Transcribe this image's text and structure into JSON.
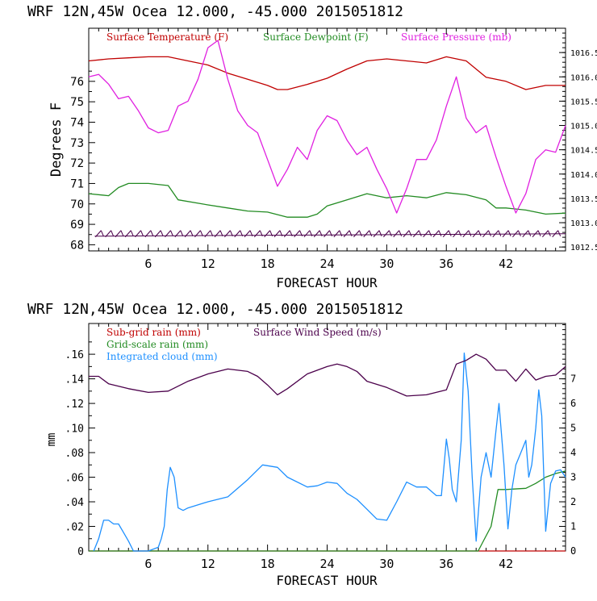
{
  "chart_data": [
    {
      "type": "line",
      "title": "WRF   12N,45W Ocea  12.000, -45.000  2015051812",
      "xlabel": "FORECAST HOUR",
      "ylabel": "Degrees F",
      "xlim": [
        0,
        48
      ],
      "xticks": [
        6,
        12,
        18,
        24,
        30,
        36,
        42
      ],
      "ylim_left": [
        67.7,
        78.6
      ],
      "yticks_left": [
        68,
        69,
        70,
        71,
        72,
        73,
        74,
        75,
        76
      ],
      "ylim_right": [
        1012.42,
        1017.0
      ],
      "yticks_right_labels": [
        "1012.5",
        "1013.0",
        "1013.5",
        "1014.0",
        "1014.5",
        "1015.0",
        "1015.5",
        "1016.0",
        "1016.5"
      ],
      "yticks_right": [
        1012.5,
        1013.0,
        1013.5,
        1014.0,
        1014.5,
        1015.0,
        1015.5,
        1016.0,
        1016.5
      ],
      "series": [
        {
          "name": "Surface Temperature (F)",
          "color": "#c00000",
          "axis": "left",
          "x": [
            0,
            2,
            4,
            6,
            8,
            10,
            12,
            14,
            16,
            18,
            19,
            20,
            22,
            24,
            26,
            28,
            30,
            32,
            34,
            36,
            38,
            40,
            42,
            44,
            46,
            48
          ],
          "y": [
            77.0,
            77.1,
            77.15,
            77.2,
            77.2,
            77.0,
            76.8,
            76.4,
            76.1,
            75.8,
            75.6,
            75.6,
            75.85,
            76.15,
            76.6,
            77.0,
            77.1,
            77.0,
            76.9,
            77.2,
            77.0,
            76.2,
            76.0,
            75.6,
            75.8,
            75.8
          ]
        },
        {
          "name": "Surface Dewpoint (F)",
          "color": "#228b22",
          "axis": "left",
          "x": [
            0,
            2,
            3,
            4,
            6,
            8,
            9,
            12,
            14,
            16,
            18,
            20,
            22,
            23,
            24,
            26,
            28,
            30,
            32,
            34,
            36,
            38,
            40,
            41,
            42,
            44,
            46,
            48
          ],
          "y": [
            70.5,
            70.4,
            70.8,
            71.0,
            71.0,
            70.9,
            70.2,
            69.95,
            69.8,
            69.65,
            69.6,
            69.35,
            69.35,
            69.5,
            69.9,
            70.2,
            70.5,
            70.3,
            70.4,
            70.3,
            70.55,
            70.45,
            70.2,
            69.8,
            69.8,
            69.7,
            69.5,
            69.55
          ]
        },
        {
          "name": "Surface Pressure (mb)",
          "color": "#e020e0",
          "axis": "right",
          "x": [
            0,
            1,
            2,
            3,
            4,
            5,
            6,
            7,
            8,
            9,
            10,
            11,
            12,
            13,
            14,
            15,
            16,
            17,
            18,
            19,
            20,
            21,
            22,
            23,
            24,
            25,
            26,
            27,
            28,
            29,
            30,
            31,
            32,
            33,
            34,
            35,
            36,
            37,
            38,
            39,
            40,
            41,
            42,
            43,
            44,
            45,
            46,
            47,
            48
          ],
          "y": [
            1016.0,
            1016.05,
            1015.85,
            1015.55,
            1015.6,
            1015.3,
            1014.95,
            1014.85,
            1014.9,
            1015.4,
            1015.5,
            1015.95,
            1016.6,
            1016.75,
            1015.95,
            1015.3,
            1015.0,
            1014.85,
            1014.3,
            1013.75,
            1014.1,
            1014.55,
            1014.3,
            1014.9,
            1015.2,
            1015.1,
            1014.7,
            1014.4,
            1014.55,
            1014.1,
            1013.7,
            1013.2,
            1013.7,
            1014.3,
            1014.3,
            1014.7,
            1015.4,
            1016.0,
            1015.15,
            1014.85,
            1015.0,
            1014.35,
            1013.75,
            1013.2,
            1013.6,
            1014.3,
            1014.5,
            1014.45,
            1015.0
          ]
        }
      ],
      "wind_barbs_y": 68.5
    },
    {
      "type": "line",
      "title": "WRF   12N,45W Ocea  12.000, -45.000  2015051812",
      "xlabel": "FORECAST HOUR",
      "ylabel": "mm",
      "xlim": [
        0,
        48
      ],
      "xticks": [
        6,
        12,
        18,
        24,
        30,
        36,
        42
      ],
      "ylim_left": [
        0,
        0.185
      ],
      "yticks_left": [
        0,
        0.02,
        0.04,
        0.06,
        0.08,
        0.1,
        0.12,
        0.14,
        0.16
      ],
      "yticks_left_labels": [
        "0",
        ".02",
        ".04",
        ".06",
        ".08",
        ".10",
        ".12",
        ".14",
        ".16"
      ],
      "ylim_right": [
        0,
        9.25
      ],
      "yticks_right": [
        0,
        1,
        2,
        3,
        4,
        5,
        6,
        7
      ],
      "series": [
        {
          "name": "Sub-grid rain (mm)",
          "color": "#c00000",
          "axis": "left",
          "x": [
            0,
            48
          ],
          "y": [
            0,
            0
          ]
        },
        {
          "name": "Grid-scale rain (mm)",
          "color": "#228b22",
          "axis": "left",
          "x": [
            0,
            39.2,
            40.5,
            41.2,
            42,
            44,
            45,
            46,
            47,
            48
          ],
          "y": [
            0,
            0,
            0.02,
            0.05,
            0.05,
            0.051,
            0.055,
            0.06,
            0.063,
            0.065
          ]
        },
        {
          "name": "Integrated cloud (mm)",
          "color": "#1e90ff",
          "axis": "left",
          "x": [
            0.5,
            1.0,
            1.5,
            2.0,
            2.5,
            3.0,
            3.5,
            4.0,
            4.5,
            5.0,
            6.0,
            7.0,
            7.3,
            7.6,
            7.9,
            8.2,
            8.6,
            9.0,
            9.5,
            10,
            12,
            14,
            16,
            17.5,
            19,
            20,
            22,
            23,
            24,
            25,
            26,
            27,
            28,
            29,
            30,
            31,
            32,
            33,
            34,
            35,
            35.5,
            36.0,
            36.3,
            36.6,
            37.0,
            37.5,
            37.8,
            38.2,
            38.6,
            39.0,
            39.5,
            40.0,
            40.5,
            41.0,
            41.3,
            41.8,
            42.2,
            42.6,
            43.0,
            43.5,
            44.0,
            44.3,
            44.6,
            45.0,
            45.3,
            45.6,
            46.0,
            46.5,
            47.0,
            47.5,
            48
          ],
          "y": [
            0,
            0.01,
            0.025,
            0.025,
            0.022,
            0.022,
            0.015,
            0.008,
            0.0,
            0.0,
            0.0,
            0.003,
            0.01,
            0.02,
            0.05,
            0.068,
            0.06,
            0.035,
            0.033,
            0.035,
            0.04,
            0.044,
            0.058,
            0.07,
            0.068,
            0.06,
            0.052,
            0.053,
            0.056,
            0.055,
            0.047,
            0.042,
            0.034,
            0.026,
            0.025,
            0.04,
            0.056,
            0.052,
            0.052,
            0.045,
            0.045,
            0.091,
            0.075,
            0.05,
            0.04,
            0.09,
            0.161,
            0.13,
            0.06,
            0.008,
            0.06,
            0.08,
            0.06,
            0.098,
            0.12,
            0.07,
            0.018,
            0.05,
            0.07,
            0.08,
            0.09,
            0.06,
            0.07,
            0.1,
            0.131,
            0.11,
            0.016,
            0.055,
            0.065,
            0.066,
            0.06
          ]
        },
        {
          "name": "Surface Wind Speed (m/s)",
          "color": "#4b004b",
          "axis": "right",
          "x": [
            0,
            1,
            2,
            4,
            6,
            8,
            10,
            12,
            14,
            16,
            17,
            18,
            19,
            20,
            22,
            24,
            25,
            26,
            27,
            28,
            30,
            32,
            34,
            36,
            37,
            38,
            39,
            40,
            41,
            42,
            43,
            44,
            45,
            46,
            47,
            48
          ],
          "y": [
            7.1,
            7.1,
            6.8,
            6.6,
            6.45,
            6.5,
            6.9,
            7.2,
            7.4,
            7.3,
            7.1,
            6.75,
            6.35,
            6.6,
            7.2,
            7.5,
            7.6,
            7.5,
            7.3,
            6.9,
            6.65,
            6.3,
            6.35,
            6.55,
            7.6,
            7.75,
            8.0,
            7.8,
            7.35,
            7.35,
            6.9,
            7.4,
            6.95,
            7.1,
            7.15,
            7.5
          ]
        }
      ]
    }
  ]
}
